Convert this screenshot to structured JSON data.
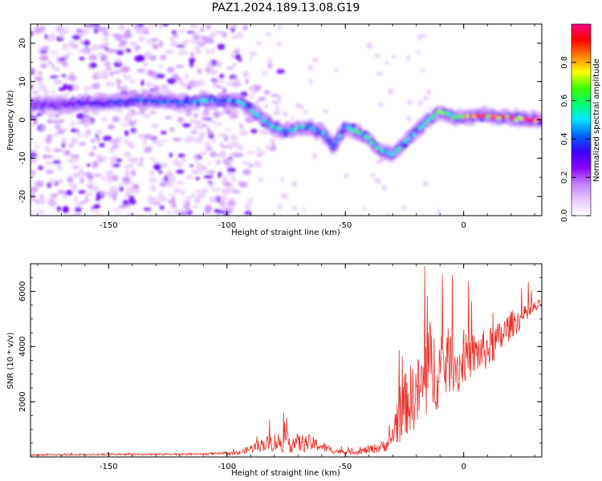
{
  "title": "PAZ1.2024.189.13.08.G19",
  "colors": {
    "series": "#e8312b",
    "axis": "#000000",
    "colormap": [
      "#ffffff",
      "#e8c8ff",
      "#c080ff",
      "#8b00ff",
      "#3a00ff",
      "#0060ff",
      "#00e5ff",
      "#00ff70",
      "#3cff00",
      "#ffff00",
      "#ff8000",
      "#ff0000",
      "#ff0080"
    ]
  },
  "chart_data": [
    {
      "type": "heatmap",
      "name": "spectrogram",
      "xlabel": "Height of straight line (km)",
      "ylabel": "Frequency (Hz)",
      "xlim": [
        -183,
        33
      ],
      "ylim": [
        -25,
        25
      ],
      "xticks": [
        -150,
        -100,
        -50,
        0
      ],
      "yticks": [
        -20,
        -10,
        0,
        10,
        20
      ],
      "colorbar": {
        "label": "Normalized spectral amplitude",
        "range": [
          0,
          1
        ],
        "ticks": [
          0.0,
          0.2,
          0.4,
          0.6,
          0.8
        ]
      },
      "ridge": {
        "height_km": [
          -183,
          -170,
          -160,
          -150,
          -140,
          -130,
          -120,
          -110,
          -100,
          -95,
          -90,
          -85,
          -80,
          -75,
          -70,
          -65,
          -60,
          -55,
          -50,
          -45,
          -40,
          -35,
          -30,
          -25,
          -20,
          -15,
          -10,
          -5,
          0,
          5,
          10,
          20,
          30,
          33
        ],
        "frequency_hz": [
          4,
          4,
          4.5,
          4.5,
          5,
          5,
          4.5,
          5,
          5,
          5,
          3,
          0,
          -2,
          -3,
          -2,
          -2,
          -3,
          -7,
          -2,
          -3,
          -5,
          -8,
          -9,
          -6,
          -3,
          0,
          2,
          1,
          0.5,
          1,
          1,
          0.5,
          0,
          0
        ],
        "amplitude": [
          0.2,
          0.25,
          0.3,
          0.35,
          0.4,
          0.4,
          0.4,
          0.45,
          0.45,
          0.45,
          0.45,
          0.5,
          0.5,
          0.5,
          0.5,
          0.45,
          0.45,
          0.45,
          0.45,
          0.55,
          0.6,
          0.55,
          0.5,
          0.5,
          0.5,
          0.55,
          0.6,
          0.65,
          0.8,
          0.85,
          0.75,
          0.9,
          0.95,
          0.95
        ]
      },
      "noise_region_km": [
        -183,
        -95
      ]
    },
    {
      "type": "line",
      "name": "snr",
      "xlabel": "Height of straight line (km)",
      "ylabel": "SNR (10 * v/v)",
      "xlim": [
        -183,
        33
      ],
      "ylim": [
        0,
        7000
      ],
      "xticks": [
        -150,
        -100,
        -50,
        0
      ],
      "yticks": [
        2000,
        4000,
        6000
      ],
      "envelope": {
        "x": [
          -183,
          -150,
          -110,
          -95,
          -90,
          -85,
          -80,
          -75,
          -70,
          -65,
          -60,
          -55,
          -50,
          -45,
          -40,
          -35,
          -31,
          -28,
          -26,
          -24,
          -22,
          -20,
          -18,
          -16,
          -15,
          -14,
          -12,
          -10,
          -8,
          -6,
          -4,
          -2,
          0,
          5,
          10,
          15,
          20,
          25,
          30,
          33
        ],
        "base": [
          60,
          80,
          90,
          110,
          250,
          350,
          400,
          380,
          350,
          380,
          300,
          180,
          150,
          150,
          200,
          280,
          400,
          1000,
          1300,
          1500,
          1600,
          1800,
          1800,
          2200,
          2600,
          2400,
          2600,
          2500,
          2800,
          3000,
          3000,
          2800,
          3200,
          3400,
          3600,
          4000,
          4600,
          4900,
          5300,
          5500
        ],
        "jitter": [
          60,
          60,
          80,
          120,
          300,
          500,
          700,
          800,
          700,
          600,
          400,
          200,
          150,
          200,
          300,
          400,
          600,
          2000,
          2200,
          2400,
          2600,
          2500,
          3000,
          3500,
          4200,
          3500,
          3000,
          2800,
          2600,
          2400,
          2200,
          2000,
          1800,
          1600,
          1500,
          1300,
          1000,
          800,
          500,
          300
        ]
      }
    }
  ]
}
